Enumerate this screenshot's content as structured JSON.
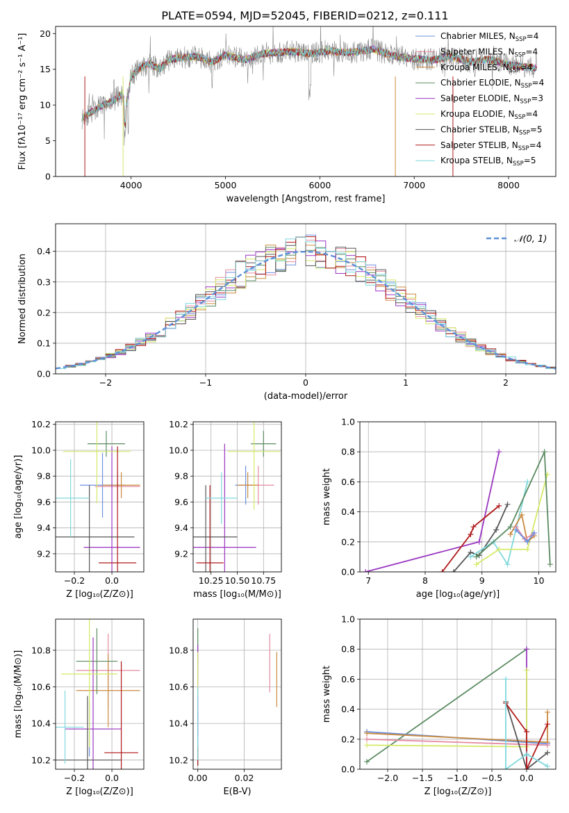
{
  "figure_title": "PLATE=0594, MJD=52045, FIBERID=0212, z=0.111",
  "colors": {
    "chabrier_miles": "#6a8fe0",
    "salpeter_miles": "#e58aa0",
    "kroupa_miles": "#c98a3e",
    "chabrier_elodie": "#5a8a60",
    "salpeter_elodie": "#9a35c0",
    "kroupa_elodie": "#d4ea66",
    "chabrier_stelib": "#555555",
    "salpeter_stelib": "#b01818",
    "kroupa_stelib": "#7fd8dc",
    "normal": "#5b8fd8"
  },
  "chart_data": [
    {
      "id": "spectrum",
      "type": "line",
      "xlabel": "wavelength [Angstrom, rest frame]",
      "ylabel": "Flux [fλ10⁻¹⁷ erg cm⁻² s⁻¹ A⁻¹]",
      "xlim": [
        3200,
        8500
      ],
      "ylim": [
        0,
        21
      ],
      "xticks": [
        4000,
        5000,
        6000,
        7000,
        8000
      ],
      "yticks": [
        0,
        5,
        10,
        15,
        20
      ],
      "grid": false,
      "legend_position": "right",
      "series": [
        {
          "name": "Chabrier MILES, N",
          "sub": "SSP",
          "suffix": "=4",
          "color_key": "chabrier_miles"
        },
        {
          "name": "Salpeter MILES, N",
          "sub": "SSP",
          "suffix": "=4",
          "color_key": "salpeter_miles"
        },
        {
          "name": "Kroupa MILES, N",
          "sub": "SSP",
          "suffix": "=4",
          "color_key": "kroupa_miles"
        },
        {
          "name": "Chabrier ELODIE, N",
          "sub": "SSP",
          "suffix": "=4",
          "color_key": "chabrier_elodie"
        },
        {
          "name": "Salpeter ELODIE, N",
          "sub": "SSP",
          "suffix": "=3",
          "color_key": "salpeter_elodie"
        },
        {
          "name": "Kroupa ELODIE, N",
          "sub": "SSP",
          "suffix": "=4",
          "color_key": "kroupa_elodie"
        },
        {
          "name": "Chabrier STELIB, N",
          "sub": "SSP",
          "suffix": "=5",
          "color_key": "chabrier_stelib"
        },
        {
          "name": "Salpeter STELIB, N",
          "sub": "SSP",
          "suffix": "=4",
          "color_key": "salpeter_stelib"
        },
        {
          "name": "Kroupa STELIB, N",
          "sub": "SSP",
          "suffix": "=5",
          "color_key": "kroupa_stelib"
        }
      ],
      "continuum": [
        [
          3480,
          8.2
        ],
        [
          3600,
          9.2
        ],
        [
          3700,
          10.0
        ],
        [
          3800,
          10.5
        ],
        [
          3900,
          11.5
        ],
        [
          3950,
          10.0
        ],
        [
          4000,
          14.0
        ],
        [
          4100,
          15.2
        ],
        [
          4200,
          15.8
        ],
        [
          4300,
          15.0
        ],
        [
          4400,
          16.3
        ],
        [
          4500,
          16.6
        ],
        [
          4700,
          16.8
        ],
        [
          4861,
          16.0
        ],
        [
          5000,
          17.0
        ],
        [
          5200,
          16.3
        ],
        [
          5400,
          17.2
        ],
        [
          5700,
          17.5
        ],
        [
          5900,
          17.2
        ],
        [
          6100,
          17.6
        ],
        [
          6300,
          17.3
        ],
        [
          6563,
          17.8
        ],
        [
          6800,
          16.8
        ],
        [
          7000,
          16.5
        ],
        [
          7200,
          16.3
        ],
        [
          7400,
          16.8
        ],
        [
          7600,
          16.0
        ],
        [
          7800,
          16.4
        ],
        [
          8000,
          15.6
        ],
        [
          8200,
          15.3
        ],
        [
          8300,
          15.2
        ]
      ]
    },
    {
      "id": "residuals",
      "type": "histogram",
      "xlabel": "(data-model)/error",
      "ylabel": "Normed distribution",
      "xlim": [
        -2.5,
        2.5
      ],
      "ylim": [
        0,
        0.49
      ],
      "xticks": [
        -2,
        -1,
        0,
        1,
        2
      ],
      "yticks": [
        0.0,
        0.1,
        0.2,
        0.3,
        0.4
      ],
      "grid": true,
      "legend": "𝒩(0, 1)",
      "legend_position": "top-right",
      "bin_width": 0.1,
      "normal_curve": {
        "mean": 0,
        "sigma": 1
      }
    },
    {
      "id": "age_vs_Z",
      "type": "errorbar",
      "xlabel": "Z [log₁₀(Z/Z⊙)]",
      "ylabel": "age  [log₁₀(age/yr)]",
      "xlim": [
        -0.3,
        0.17
      ],
      "ylim": [
        9.06,
        10.22
      ],
      "xticks": [
        -0.2,
        0.0
      ],
      "yticks": [
        9.2,
        9.4,
        9.6,
        9.8,
        10.0,
        10.2
      ],
      "grid": true,
      "points": [
        {
          "color_key": "chabrier_miles",
          "x": -0.05,
          "xerr": 0.12,
          "y": 9.73,
          "yerr": 0.25
        },
        {
          "color_key": "salpeter_miles",
          "x": 0.03,
          "xerr": 0.12,
          "y": 9.72,
          "yerr": 0.12
        },
        {
          "color_key": "kroupa_miles",
          "x": 0.05,
          "xerr": 0.1,
          "y": 9.73,
          "yerr": 0.1
        },
        {
          "color_key": "chabrier_elodie",
          "x": -0.03,
          "xerr": 0.1,
          "y": 10.05,
          "yerr": 0.1
        },
        {
          "color_key": "salpeter_elodie",
          "x": 0.0,
          "xerr": 0.15,
          "y": 9.25,
          "yerr": 0.78
        },
        {
          "color_key": "kroupa_elodie",
          "x": -0.08,
          "xerr": 0.18,
          "y": 9.99,
          "yerr": 0.4
        },
        {
          "color_key": "chabrier_stelib",
          "x": -0.12,
          "xerr": 0.24,
          "y": 9.33,
          "yerr": 0.4
        },
        {
          "color_key": "salpeter_stelib",
          "x": 0.03,
          "xerr": 0.1,
          "y": 9.13,
          "yerr": 0.9
        },
        {
          "color_key": "kroupa_stelib",
          "x": -0.22,
          "xerr": 0.1,
          "y": 9.63,
          "yerr": 0.3
        }
      ]
    },
    {
      "id": "age_vs_mass",
      "type": "errorbar",
      "xlabel": "mass [log₁₀(M/M⊙)]",
      "ylabel": "",
      "xlim": [
        10.08,
        10.92
      ],
      "ylim": [
        9.06,
        10.22
      ],
      "xticks": [
        10.25,
        10.5,
        10.75
      ],
      "yticks": [
        9.2,
        9.4,
        9.6,
        9.8,
        10.0,
        10.2
      ],
      "grid": true,
      "points": [
        {
          "color_key": "chabrier_miles",
          "x": 10.58,
          "xerr": 0.1,
          "y": 9.73,
          "yerr": 0.15
        },
        {
          "color_key": "salpeter_miles",
          "x": 10.7,
          "xerr": 0.15,
          "y": 9.73,
          "yerr": 0.15
        },
        {
          "color_key": "kroupa_miles",
          "x": 10.6,
          "xerr": 0.1,
          "y": 9.73,
          "yerr": 0.1
        },
        {
          "color_key": "chabrier_elodie",
          "x": 10.75,
          "xerr": 0.12,
          "y": 10.05,
          "yerr": 0.1
        },
        {
          "color_key": "salpeter_elodie",
          "x": 10.38,
          "xerr": 0.3,
          "y": 9.25,
          "yerr": 0.8
        },
        {
          "color_key": "kroupa_elodie",
          "x": 10.66,
          "xerr": 0.25,
          "y": 9.99,
          "yerr": 0.45
        },
        {
          "color_key": "chabrier_stelib",
          "x": 10.2,
          "xerr": 0.3,
          "y": 9.33,
          "yerr": 0.4
        },
        {
          "color_key": "salpeter_stelib",
          "x": 10.24,
          "xerr": 0.13,
          "y": 9.13,
          "yerr": 0.6
        },
        {
          "color_key": "kroupa_stelib",
          "x": 10.35,
          "xerr": 0.15,
          "y": 9.63,
          "yerr": 0.2
        }
      ]
    },
    {
      "id": "weight_vs_age",
      "type": "line",
      "xlabel": "age  [log₁₀(age/yr)]",
      "ylabel": "mass weight",
      "xlim": [
        6.85,
        10.3
      ],
      "ylim": [
        0,
        1.0
      ],
      "xticks": [
        7,
        8,
        9,
        10
      ],
      "yticks": [
        0.0,
        0.2,
        0.4,
        0.6,
        0.8,
        1.0
      ],
      "grid": true,
      "series": [
        {
          "color_key": "salpeter_elodie",
          "x": [
            6.95,
            8.95,
            9.3
          ],
          "y": [
            0.0,
            0.2,
            0.8
          ]
        },
        {
          "color_key": "salpeter_stelib",
          "x": [
            8.3,
            8.8,
            8.85,
            9.3
          ],
          "y": [
            0.0,
            0.25,
            0.3,
            0.44
          ]
        },
        {
          "color_key": "chabrier_stelib",
          "x": [
            8.5,
            8.8,
            8.95,
            9.25,
            9.45
          ],
          "y": [
            0.0,
            0.13,
            0.11,
            0.28,
            0.45
          ]
        },
        {
          "color_key": "kroupa_stelib",
          "x": [
            8.8,
            9.2,
            9.45,
            9.8
          ],
          "y": [
            0.1,
            0.2,
            0.05,
            0.6
          ]
        },
        {
          "color_key": "kroupa_elodie",
          "x": [
            8.9,
            9.3,
            9.8,
            10.15
          ],
          "y": [
            0.05,
            0.15,
            0.15,
            0.65
          ]
        },
        {
          "color_key": "chabrier_elodie",
          "x": [
            8.9,
            9.5,
            10.1,
            10.2
          ],
          "y": [
            0.1,
            0.3,
            0.8,
            0.05
          ]
        },
        {
          "color_key": "kroupa_miles",
          "x": [
            9.5,
            9.7,
            9.8,
            9.92
          ],
          "y": [
            0.25,
            0.38,
            0.2,
            0.24
          ]
        },
        {
          "color_key": "salpeter_miles",
          "x": [
            9.6,
            9.75,
            9.9
          ],
          "y": [
            0.3,
            0.22,
            0.25
          ]
        },
        {
          "color_key": "chabrier_miles",
          "x": [
            9.6,
            9.8,
            9.92
          ],
          "y": [
            0.28,
            0.2,
            0.26
          ]
        }
      ]
    },
    {
      "id": "mass_vs_Z",
      "type": "errorbar",
      "xlabel": "Z [log₁₀(Z/Z⊙)]",
      "ylabel": "mass [log₁₀(M/M⊙)]",
      "xlim": [
        -0.3,
        0.17
      ],
      "ylim": [
        10.15,
        10.97
      ],
      "xticks": [
        -0.2,
        0.0
      ],
      "yticks": [
        10.2,
        10.4,
        10.6,
        10.8
      ],
      "grid": true,
      "points": [
        {
          "color_key": "chabrier_miles",
          "x": -0.12,
          "xerr": 0.11,
          "y": 10.37,
          "yerr": 0.15
        },
        {
          "color_key": "salpeter_miles",
          "x": -0.02,
          "xerr": 0.17,
          "y": 10.69,
          "yerr": 0.2
        },
        {
          "color_key": "kroupa_miles",
          "x": -0.02,
          "xerr": 0.17,
          "y": 10.58,
          "yerr": 0.2
        },
        {
          "color_key": "chabrier_elodie",
          "x": -0.08,
          "xerr": 0.11,
          "y": 10.74,
          "yerr": 0.18
        },
        {
          "color_key": "salpeter_elodie",
          "x": -0.1,
          "xerr": 0.15,
          "y": 10.37,
          "yerr": 0.5
        },
        {
          "color_key": "kroupa_elodie",
          "x": -0.12,
          "xerr": 0.15,
          "y": 10.67,
          "yerr": 0.4
        },
        {
          "color_key": "chabrier_stelib",
          "x": -0.13,
          "xerr": 0.18,
          "y": 10.2,
          "yerr": 0.35
        },
        {
          "color_key": "salpeter_stelib",
          "x": 0.05,
          "xerr": 0.09,
          "y": 10.24,
          "yerr": 0.5
        },
        {
          "color_key": "kroupa_stelib",
          "x": -0.25,
          "xerr": 0.1,
          "y": 10.38,
          "yerr": 0.2
        }
      ]
    },
    {
      "id": "mass_vs_ebv",
      "type": "errorbar",
      "xlabel": "E(B-V)",
      "ylabel": "",
      "xlim": [
        -0.002,
        0.036
      ],
      "ylim": [
        10.15,
        10.97
      ],
      "xticks": [
        0.0,
        0.02
      ],
      "yticks": [
        10.2,
        10.4,
        10.6,
        10.8
      ],
      "grid": true,
      "points": [
        {
          "color_key": "chabrier_miles",
          "x": 0.0,
          "xerr": 0,
          "y": 10.37,
          "yerr": 0.1
        },
        {
          "color_key": "salpeter_miles",
          "x": 0.031,
          "xerr": 0,
          "y": 10.73,
          "yerr": 0.16
        },
        {
          "color_key": "kroupa_miles",
          "x": 0.034,
          "xerr": 0,
          "y": 10.64,
          "yerr": 0.15
        },
        {
          "color_key": "chabrier_elodie",
          "x": 0.0,
          "xerr": 0,
          "y": 10.82,
          "yerr": 0.1
        },
        {
          "color_key": "salpeter_elodie",
          "x": 0.0,
          "xerr": 0,
          "y": 10.58,
          "yerr": 0.25
        },
        {
          "color_key": "kroupa_elodie",
          "x": 0.0,
          "xerr": 0,
          "y": 10.67,
          "yerr": 0.12
        },
        {
          "color_key": "chabrier_stelib",
          "x": 0.0,
          "xerr": 0,
          "y": 10.22,
          "yerr": 0.05
        },
        {
          "color_key": "salpeter_stelib",
          "x": 0.0,
          "xerr": 0,
          "y": 10.22,
          "yerr": 0.05
        },
        {
          "color_key": "kroupa_stelib",
          "x": 0.0,
          "xerr": 0,
          "y": 10.4,
          "yerr": 0.2
        }
      ]
    },
    {
      "id": "weight_vs_Z",
      "type": "line",
      "xlabel": "Z [log₁₀(Z/Z⊙)]",
      "ylabel": "mass weight",
      "xlim": [
        -2.4,
        0.42
      ],
      "ylim": [
        0,
        1.0
      ],
      "xticks": [
        -2.0,
        -1.5,
        -1.0,
        -0.5,
        0.0
      ],
      "yticks": [
        0.0,
        0.2,
        0.4,
        0.6,
        0.8,
        1.0
      ],
      "grid": true,
      "series": [
        {
          "color_key": "chabrier_elodie",
          "x": [
            -2.3,
            0.0
          ],
          "y": [
            0.05,
            0.8
          ]
        },
        {
          "color_key": "salpeter_elodie",
          "x": [
            0.0,
            0.0
          ],
          "y": [
            0.0,
            0.8
          ]
        },
        {
          "color_key": "kroupa_elodie",
          "x": [
            -2.3,
            0.0,
            0.0
          ],
          "y": [
            0.16,
            0.15,
            0.66
          ]
        },
        {
          "color_key": "chabrier_miles",
          "x": [
            -2.3,
            0.3
          ],
          "y": [
            0.25,
            0.17
          ]
        },
        {
          "color_key": "kroupa_miles",
          "x": [
            -2.3,
            0.3,
            0.3
          ],
          "y": [
            0.24,
            0.18,
            0.38
          ]
        },
        {
          "color_key": "salpeter_miles",
          "x": [
            -2.3,
            0.3
          ],
          "y": [
            0.2,
            0.16
          ]
        },
        {
          "color_key": "chabrier_stelib",
          "x": [
            -0.3,
            0.0,
            0.3
          ],
          "y": [
            0.45,
            0.0,
            0.11
          ]
        },
        {
          "color_key": "salpeter_stelib",
          "x": [
            -0.3,
            0.0,
            0.0,
            0.3
          ],
          "y": [
            0.44,
            0.25,
            0.0,
            0.3
          ]
        },
        {
          "color_key": "kroupa_stelib",
          "x": [
            -0.3,
            -0.3,
            0.0,
            0.3
          ],
          "y": [
            0.6,
            0.0,
            0.1,
            0.02
          ]
        }
      ]
    }
  ]
}
